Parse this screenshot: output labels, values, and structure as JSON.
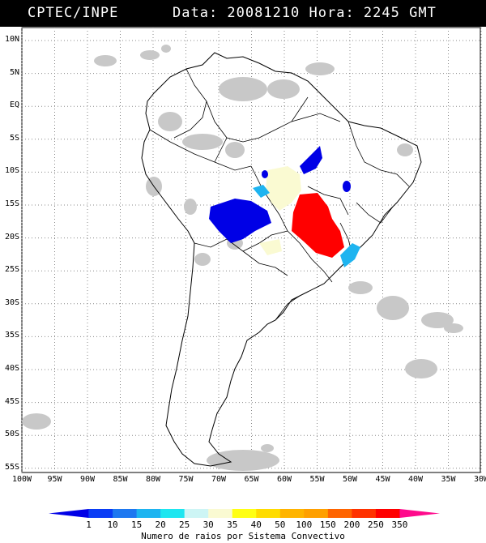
{
  "header": {
    "agency": "CPTEC/INPE",
    "datetime": "Data: 20081210 Hora: 2245 GMT"
  },
  "map": {
    "lat_labels": [
      "10N",
      "5N",
      "EQ",
      "5S",
      "10S",
      "15S",
      "20S",
      "25S",
      "30S",
      "35S",
      "40S",
      "45S",
      "50S",
      "55S"
    ],
    "lon_labels": [
      "100W",
      "95W",
      "90W",
      "85W",
      "80W",
      "75W",
      "70W",
      "65W",
      "60W",
      "55W",
      "50W",
      "45W",
      "40W",
      "35W",
      "30W"
    ],
    "grid": true,
    "cloud_color": "#c8c8c8"
  },
  "colorbar": {
    "labels": [
      "1",
      "10",
      "15",
      "20",
      "25",
      "30",
      "35",
      "40",
      "50",
      "100",
      "150",
      "200",
      "250",
      "350"
    ],
    "colors": [
      "#0000e6",
      "#0a3cf5",
      "#1e78f0",
      "#1eb4f0",
      "#1ee6f0",
      "#cdf5f5",
      "#fafad2",
      "#ffff14",
      "#ffdc00",
      "#ffb400",
      "#ffa000",
      "#ff6400",
      "#ff3200",
      "#ff0000",
      "#ff0a8c"
    ],
    "caption": "Numero de raios por Sistema Convectivo"
  }
}
